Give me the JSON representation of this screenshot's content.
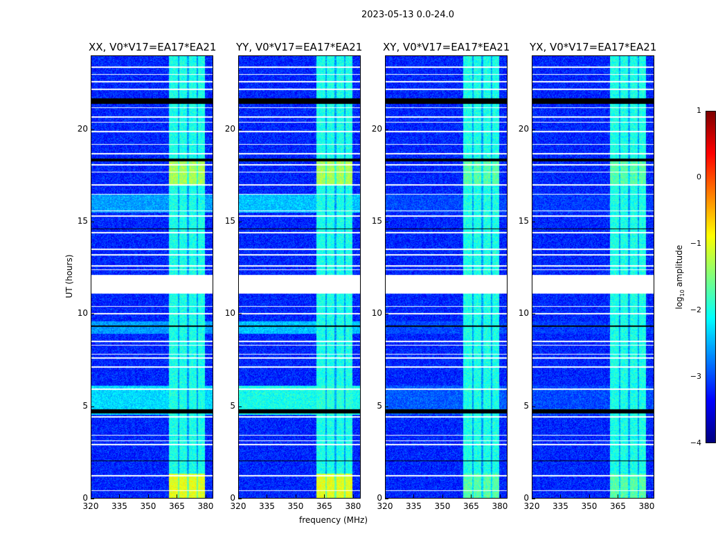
{
  "chart_data": {
    "type": "heatmap",
    "title": "2023-05-13 0.0-24.0",
    "xlabel": "frequency (MHz)",
    "ylabel": "UT (hours)",
    "xlim": [
      320,
      384
    ],
    "ylim": [
      0,
      24
    ],
    "xticks": [
      320,
      335,
      350,
      365,
      380
    ],
    "yticks": [
      0,
      5,
      10,
      15,
      20
    ],
    "panels": [
      {
        "title": "XX, V0*V17=EA17*EA21",
        "broadband_boost": 1
      },
      {
        "title": "YY, V0*V17=EA17*EA21",
        "broadband_boost": 1.3
      },
      {
        "title": "XY, V0*V17=EA17*EA21",
        "broadband_boost": 0.3
      },
      {
        "title": "YX, V0*V17=EA17*EA21",
        "broadband_boost": 0.2
      }
    ],
    "background_log_amp": -3.2,
    "rfi_band_MHz": [
      361,
      380
    ],
    "rfi_band_log_amp": -2.0,
    "rfi_band_dark_channels_MHz": [
      366,
      371,
      376
    ],
    "elevated_band_intervals_h": [
      [
        17.0,
        18.3,
        -1.3
      ],
      [
        0,
        1.3,
        -1.0
      ]
    ],
    "broadband_intervals_h": [
      [
        4.5,
        6.1,
        -2.3
      ],
      [
        15.5,
        16.5,
        -2.6
      ],
      [
        8.9,
        9.6,
        -2.6
      ]
    ],
    "missing_data_h": [
      [
        11.1,
        12.1
      ]
    ],
    "flagged_white_rows_h": [
      0.4,
      1.2,
      2.9,
      3.1,
      3.4,
      4.4,
      5.9,
      7.1,
      7.6,
      7.8,
      8.3,
      8.5,
      10.0,
      10.4,
      12.4,
      12.6,
      13.2,
      13.5,
      14.4,
      15.3,
      15.6,
      16.5,
      17.0,
      17.7,
      18.1,
      18.7,
      19.2,
      19.9,
      20.4,
      20.7,
      21.2,
      22.2,
      22.6,
      23.0,
      23.4
    ],
    "flagged_black_rows_h": [
      [
        21.4,
        21.7
      ],
      [
        4.6,
        4.8
      ],
      [
        18.3,
        18.45
      ],
      [
        14.6,
        14.65
      ],
      [
        9.3,
        9.35
      ],
      [
        2.0,
        2.05
      ]
    ],
    "colorbar": {
      "label": "log10 amplitude",
      "label_main": "log",
      "label_sub": "10",
      "label_rest": " amplitude",
      "range": [
        -4,
        1
      ],
      "ticks": [
        "−4",
        "−3",
        "−2",
        "−1",
        "0",
        "1"
      ],
      "colormap": "jet"
    }
  }
}
